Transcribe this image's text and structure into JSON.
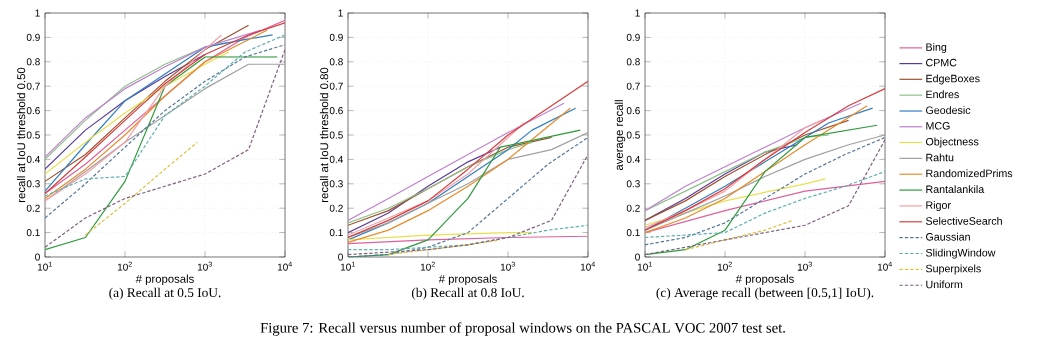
{
  "chart_data": [
    {
      "type": "line",
      "title": "(a) Recall at 0.5 IoU.",
      "xlabel": "# proposals",
      "ylabel": "recall at IoU threshold 0.50",
      "log": "x",
      "grid": true,
      "legend": false,
      "xlim": [
        10,
        10000
      ],
      "ylim": [
        0,
        1
      ],
      "xticks": [
        {
          "value": 10,
          "label": "10$^{1}$"
        },
        {
          "value": 100,
          "label": "10$^{2}$"
        },
        {
          "value": 1000,
          "label": "10$^{3}$"
        },
        {
          "value": 10000,
          "label": "10$^{4}$"
        }
      ],
      "yticks": [
        0,
        0.1,
        0.2,
        0.3,
        0.4,
        0.5,
        0.6,
        0.7,
        0.8,
        0.9,
        1
      ],
      "annotations": [
        "Figure 7: Recall versus number of proposal windows on the PASCAL VOC 2007 test set."
      ],
      "series": [
        {
          "color": "#e0609b",
          "x": [
            10,
            32,
            100,
            316,
            1000,
            3162,
            10000
          ],
          "values": [
            0.26,
            0.38,
            0.52,
            0.66,
            0.8,
            0.9,
            0.97
          ]
        },
        {
          "color": "#5b3b9a",
          "x": [
            10,
            32,
            100,
            316,
            1000
          ],
          "values": [
            0.36,
            0.52,
            0.64,
            0.74,
            0.83
          ]
        },
        {
          "color": "#a0522d",
          "x": [
            10,
            32,
            100,
            316,
            1000,
            3500
          ],
          "values": [
            0.31,
            0.42,
            0.57,
            0.72,
            0.85,
            0.95
          ]
        },
        {
          "color": "#8fc28a",
          "x": [
            10,
            32,
            100,
            316,
            1000,
            2000
          ],
          "values": [
            0.4,
            0.56,
            0.7,
            0.79,
            0.86,
            0.88
          ]
        },
        {
          "color": "#2f7fc1",
          "x": [
            10,
            32,
            100,
            316,
            1000,
            3000,
            7000
          ],
          "values": [
            0.27,
            0.46,
            0.64,
            0.75,
            0.86,
            0.89,
            0.91
          ]
        },
        {
          "color": "#c080d0",
          "x": [
            10,
            32,
            100,
            316,
            1000,
            5000
          ],
          "values": [
            0.41,
            0.57,
            0.69,
            0.78,
            0.86,
            0.93
          ]
        },
        {
          "color": "#e8e050",
          "x": [
            10,
            32,
            100,
            316,
            1000,
            2000
          ],
          "values": [
            0.34,
            0.47,
            0.59,
            0.7,
            0.79,
            0.84
          ]
        },
        {
          "color": "#a0a0a0",
          "x": [
            10,
            32,
            100,
            316,
            1000,
            3500,
            10000
          ],
          "values": [
            0.23,
            0.35,
            0.47,
            0.58,
            0.69,
            0.79,
            0.79
          ]
        },
        {
          "color": "#e88a2a",
          "x": [
            10,
            32,
            100,
            316,
            1000,
            6000
          ],
          "values": [
            0.24,
            0.36,
            0.5,
            0.66,
            0.8,
            0.93
          ]
        },
        {
          "color": "#2e9a3a",
          "x": [
            10,
            32,
            100,
            316,
            1000,
            8000
          ],
          "values": [
            0.03,
            0.08,
            0.31,
            0.7,
            0.82,
            0.82
          ]
        },
        {
          "color": "#f4a0a8",
          "x": [
            10,
            32,
            100,
            316,
            1000,
            1600
          ],
          "values": [
            0.23,
            0.34,
            0.47,
            0.7,
            0.85,
            0.91
          ]
        },
        {
          "color": "#d83c3c",
          "x": [
            10,
            32,
            100,
            316,
            1000,
            3500,
            10000
          ],
          "values": [
            0.26,
            0.41,
            0.56,
            0.71,
            0.83,
            0.91,
            0.96
          ]
        },
        {
          "color": "#557799",
          "line_style": "dashed",
          "x": [
            10,
            32,
            100,
            316,
            1000,
            3162,
            10000
          ],
          "values": [
            0.16,
            0.3,
            0.45,
            0.6,
            0.72,
            0.82,
            0.87
          ]
        },
        {
          "color": "#60b0b0",
          "line_style": "dashed",
          "x": [
            10,
            32,
            100,
            316,
            1000,
            3162,
            10000
          ],
          "values": [
            0.25,
            0.32,
            0.33,
            0.58,
            0.7,
            0.84,
            0.91
          ]
        },
        {
          "color": "#e0c040",
          "line_style": "dashed",
          "x": [
            32,
            100,
            316,
            800
          ],
          "values": [
            0.09,
            0.22,
            0.36,
            0.47
          ]
        },
        {
          "color": "#806080",
          "line_style": "dashed",
          "x": [
            10,
            32,
            100,
            316,
            1000,
            3500,
            10000
          ],
          "values": [
            0.04,
            0.16,
            0.24,
            0.29,
            0.34,
            0.44,
            0.85
          ]
        }
      ]
    },
    {
      "type": "line",
      "title": "(b) Recall at 0.8 IoU.",
      "xlabel": "# proposals",
      "ylabel": "recall at IoU threshold 0.80",
      "log": "x",
      "grid": true,
      "legend": false,
      "xlim": [
        10,
        10000
      ],
      "ylim": [
        0,
        1
      ],
      "xticks": [
        {
          "value": 10,
          "label": "10$^{1}$"
        },
        {
          "value": 100,
          "label": "10$^{2}$"
        },
        {
          "value": 1000,
          "label": "10$^{3}$"
        },
        {
          "value": 10000,
          "label": "10$^{4}$"
        }
      ],
      "yticks": [
        0,
        0.1,
        0.2,
        0.3,
        0.4,
        0.5,
        0.6,
        0.7,
        0.8,
        0.9,
        1
      ],
      "series": [
        {
          "color": "#e0609b",
          "x": [
            10,
            100,
            1000,
            10000
          ],
          "values": [
            0.055,
            0.07,
            0.08,
            0.085
          ]
        },
        {
          "color": "#5b3b9a",
          "x": [
            10,
            32,
            100,
            316,
            800
          ],
          "values": [
            0.1,
            0.18,
            0.29,
            0.39,
            0.45
          ]
        },
        {
          "color": "#a0522d",
          "x": [
            10,
            32,
            100,
            316,
            1000,
            3500
          ],
          "values": [
            0.13,
            0.19,
            0.28,
            0.37,
            0.45,
            0.49
          ]
        },
        {
          "color": "#8fc28a",
          "x": [
            10,
            32,
            100,
            316,
            1000,
            2000
          ],
          "values": [
            0.14,
            0.2,
            0.28,
            0.37,
            0.44,
            0.47
          ]
        },
        {
          "color": "#2f7fc1",
          "x": [
            10,
            32,
            100,
            316,
            1000,
            2000,
            7000
          ],
          "values": [
            0.07,
            0.14,
            0.22,
            0.33,
            0.44,
            0.52,
            0.61
          ]
        },
        {
          "color": "#c080d0",
          "x": [
            10,
            32,
            100,
            316,
            1000,
            5000
          ],
          "values": [
            0.15,
            0.24,
            0.33,
            0.42,
            0.51,
            0.63
          ]
        },
        {
          "color": "#e8e050",
          "x": [
            10,
            100,
            1000,
            2000
          ],
          "values": [
            0.07,
            0.09,
            0.1,
            0.1
          ]
        },
        {
          "color": "#a0a0a0",
          "x": [
            10,
            32,
            100,
            316,
            1000,
            3500,
            10000
          ],
          "values": [
            0.08,
            0.14,
            0.22,
            0.3,
            0.4,
            0.44,
            0.51
          ]
        },
        {
          "color": "#e88a2a",
          "x": [
            10,
            32,
            100,
            316,
            1000,
            6000
          ],
          "values": [
            0.06,
            0.11,
            0.19,
            0.29,
            0.4,
            0.61
          ]
        },
        {
          "color": "#2e9a3a",
          "x": [
            10,
            32,
            100,
            316,
            800,
            8000
          ],
          "values": [
            0.0,
            0.01,
            0.07,
            0.24,
            0.45,
            0.52
          ]
        },
        {
          "color": "#f4a0a8",
          "x": [
            10,
            32,
            100,
            316,
            1000,
            1600
          ],
          "values": [
            0.09,
            0.16,
            0.23,
            0.34,
            0.49,
            0.55
          ]
        },
        {
          "color": "#d83c3c",
          "x": [
            10,
            32,
            100,
            316,
            1000,
            3500,
            10000
          ],
          "values": [
            0.08,
            0.15,
            0.23,
            0.36,
            0.5,
            0.62,
            0.72
          ]
        },
        {
          "color": "#557799",
          "line_style": "dashed",
          "x": [
            10,
            32,
            100,
            316,
            1000,
            3162,
            10000
          ],
          "values": [
            0.0,
            0.01,
            0.04,
            0.1,
            0.24,
            0.38,
            0.49
          ]
        },
        {
          "color": "#60b0b0",
          "line_style": "dashed",
          "x": [
            10,
            32,
            100,
            316,
            1000,
            3162,
            10000
          ],
          "values": [
            0.03,
            0.03,
            0.04,
            0.05,
            0.08,
            0.11,
            0.13
          ]
        },
        {
          "color": "#e0c040",
          "line_style": "dashed",
          "x": [
            32,
            100,
            316,
            800
          ],
          "values": [
            0.01,
            0.03,
            0.05,
            0.07
          ]
        },
        {
          "color": "#806080",
          "line_style": "dashed",
          "x": [
            10,
            32,
            100,
            316,
            1000,
            3500,
            10000
          ],
          "values": [
            0.01,
            0.02,
            0.03,
            0.05,
            0.08,
            0.15,
            0.42
          ]
        }
      ]
    },
    {
      "type": "line",
      "title": "(c) Average recall (between [0.5,1] IoU).",
      "xlabel": "# proposals",
      "ylabel": "average recall",
      "log": "x",
      "grid": true,
      "legend": "right",
      "xlim": [
        10,
        10000
      ],
      "ylim": [
        0,
        1
      ],
      "xticks": [
        {
          "value": 10,
          "label": "10$^{1}$"
        },
        {
          "value": 100,
          "label": "10$^{2}$"
        },
        {
          "value": 1000,
          "label": "10$^{3}$"
        },
        {
          "value": 10000,
          "label": "10$^{4}$"
        }
      ],
      "yticks": [
        0,
        0.1,
        0.2,
        0.3,
        0.4,
        0.5,
        0.6,
        0.7,
        0.8,
        0.9,
        1
      ],
      "series": [
        {
          "name": "Bing",
          "color": "#e0609b",
          "x": [
            10,
            100,
            1000,
            10000
          ],
          "values": [
            0.1,
            0.19,
            0.27,
            0.31
          ]
        },
        {
          "name": "CPMC",
          "color": "#5b3b9a",
          "x": [
            10,
            32,
            100,
            316,
            800
          ],
          "values": [
            0.15,
            0.24,
            0.34,
            0.43,
            0.46
          ]
        },
        {
          "name": "EdgeBoxes",
          "color": "#a0522d",
          "x": [
            10,
            32,
            100,
            316,
            1000,
            3500
          ],
          "values": [
            0.15,
            0.23,
            0.33,
            0.42,
            0.5,
            0.56
          ]
        },
        {
          "name": "Endres",
          "color": "#8fc28a",
          "x": [
            10,
            32,
            100,
            316,
            1000,
            2000
          ],
          "values": [
            0.19,
            0.27,
            0.35,
            0.43,
            0.49,
            0.5
          ]
        },
        {
          "name": "Geodesic",
          "color": "#2f7fc1",
          "x": [
            10,
            32,
            100,
            316,
            1000,
            2000,
            7000
          ],
          "values": [
            0.11,
            0.2,
            0.29,
            0.39,
            0.49,
            0.55,
            0.61
          ]
        },
        {
          "name": "MCG",
          "color": "#c080d0",
          "x": [
            10,
            32,
            100,
            316,
            1000,
            5000
          ],
          "values": [
            0.19,
            0.29,
            0.37,
            0.45,
            0.53,
            0.63
          ]
        },
        {
          "name": "Objectness",
          "color": "#e8e050",
          "x": [
            10,
            100,
            1000,
            1800
          ],
          "values": [
            0.13,
            0.23,
            0.3,
            0.32
          ]
        },
        {
          "name": "Rahtu",
          "color": "#a0a0a0",
          "x": [
            10,
            32,
            100,
            316,
            1000,
            3500,
            10000
          ],
          "values": [
            0.11,
            0.18,
            0.25,
            0.33,
            0.4,
            0.46,
            0.5
          ]
        },
        {
          "name": "RandomizedPrims",
          "color": "#e88a2a",
          "x": [
            10,
            32,
            100,
            316,
            1000,
            6000
          ],
          "values": [
            0.1,
            0.16,
            0.24,
            0.35,
            0.46,
            0.62
          ]
        },
        {
          "name": "Rantalankila",
          "color": "#2e9a3a",
          "x": [
            10,
            32,
            100,
            316,
            1000,
            8000
          ],
          "values": [
            0.01,
            0.03,
            0.11,
            0.35,
            0.49,
            0.54
          ]
        },
        {
          "name": "Rigor",
          "color": "#f4a0a8",
          "x": [
            10,
            32,
            100,
            316,
            1000,
            1600
          ],
          "values": [
            0.12,
            0.19,
            0.27,
            0.4,
            0.53,
            0.56
          ]
        },
        {
          "name": "SelectiveSearch",
          "color": "#d83c3c",
          "x": [
            10,
            32,
            100,
            316,
            1000,
            3500,
            10000
          ],
          "values": [
            0.11,
            0.19,
            0.28,
            0.4,
            0.51,
            0.62,
            0.69
          ]
        },
        {
          "name": "Gaussian",
          "color": "#557799",
          "line_style": "dashed",
          "x": [
            10,
            32,
            100,
            316,
            1000,
            3162,
            10000
          ],
          "values": [
            0.05,
            0.08,
            0.14,
            0.24,
            0.34,
            0.42,
            0.49
          ]
        },
        {
          "name": "SlidingWindow",
          "color": "#60b0b0",
          "line_style": "dashed",
          "x": [
            10,
            32,
            100,
            316,
            1000,
            3162,
            10000
          ],
          "values": [
            0.08,
            0.09,
            0.1,
            0.18,
            0.24,
            0.29,
            0.35
          ]
        },
        {
          "name": "Superpixels",
          "color": "#e0c040",
          "line_style": "dashed",
          "x": [
            32,
            100,
            316,
            700
          ],
          "values": [
            0.03,
            0.07,
            0.11,
            0.15
          ]
        },
        {
          "name": "Uniform",
          "color": "#806080",
          "line_style": "dashed",
          "x": [
            10,
            32,
            100,
            316,
            1000,
            3500,
            10000
          ],
          "values": [
            0.01,
            0.04,
            0.07,
            0.1,
            0.13,
            0.21,
            0.48
          ]
        }
      ]
    }
  ]
}
